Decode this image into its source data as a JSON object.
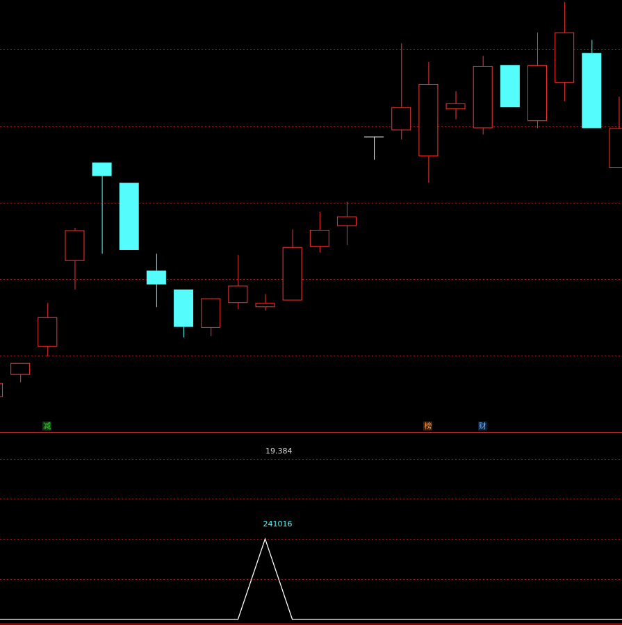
{
  "colors": {
    "background": "#000000",
    "up": "#ff3232",
    "down": "#54fcfc",
    "doji": "#ffffff",
    "grid": "#a01818",
    "separator": "#c83232",
    "indicator_line": "#ffffff",
    "peak_label": "#54fcfc",
    "value_label": "#dcdcdc"
  },
  "chart_data": [
    {
      "type": "candlestick",
      "title": "",
      "xlabel": "",
      "ylabel": "",
      "ylim": [
        0,
        100
      ],
      "grid": true,
      "gridlines": [
        88.3,
        70.0,
        51.8,
        33.6,
        15.4
      ],
      "candles": [
        {
          "open": 5.5,
          "close": 8.8,
          "high": 8.8,
          "low": 5.5
        },
        {
          "open": 10.8,
          "close": 13.6,
          "high": 13.6,
          "low": 9.0
        },
        {
          "open": 17.5,
          "close": 24.5,
          "high": 27.9,
          "low": 15.2
        },
        {
          "open": 37.9,
          "close": 45.2,
          "high": 45.8,
          "low": 31.1
        },
        {
          "open": 61.3,
          "close": 58.1,
          "high": 61.3,
          "low": 39.6
        },
        {
          "open": 56.5,
          "close": 40.5,
          "high": 56.5,
          "low": 40.5
        },
        {
          "open": 35.6,
          "close": 32.3,
          "high": 39.6,
          "low": 26.9
        },
        {
          "open": 31.1,
          "close": 22.2,
          "high": 31.1,
          "low": 19.7
        },
        {
          "open": 22.0,
          "close": 29.0,
          "high": 29.0,
          "low": 20.0
        },
        {
          "open": 27.9,
          "close": 32.0,
          "high": 39.3,
          "low": 26.4
        },
        {
          "open": 26.9,
          "close": 27.9,
          "high": 30.0,
          "low": 26.1
        },
        {
          "open": 28.5,
          "close": 41.2,
          "high": 45.4,
          "low": 28.5
        },
        {
          "open": 41.3,
          "close": 45.3,
          "high": 49.6,
          "low": 39.9
        },
        {
          "open": 46.2,
          "close": 48.5,
          "high": 52.0,
          "low": 41.7
        },
        {
          "open": 67.5,
          "close": 67.5,
          "high": 67.5,
          "low": 62.0
        },
        {
          "open": 69.0,
          "close": 74.5,
          "high": 89.7,
          "low": 66.8
        },
        {
          "open": 62.8,
          "close": 80.0,
          "high": 85.3,
          "low": 56.5
        },
        {
          "open": 74.0,
          "close": 75.4,
          "high": 78.3,
          "low": 71.6
        },
        {
          "open": 69.5,
          "close": 84.3,
          "high": 86.7,
          "low": 68.0
        },
        {
          "open": 84.5,
          "close": 74.5,
          "high": 84.5,
          "low": 74.5
        },
        {
          "open": 71.2,
          "close": 84.5,
          "high": 92.3,
          "low": 69.5
        },
        {
          "open": 80.3,
          "close": 92.3,
          "high": 99.5,
          "low": 75.9
        },
        {
          "open": 87.4,
          "close": 69.5,
          "high": 90.5,
          "low": 69.5
        },
        {
          "open": 60.0,
          "close": 69.5,
          "high": 77.0,
          "low": 60.0
        }
      ],
      "signals": [
        {
          "index": 2,
          "text": "减",
          "color": "#32dc32",
          "bg": "#0a3a0a"
        },
        {
          "index": 16,
          "text": "榜",
          "color": "#ff8c32",
          "bg": "#3a200a"
        },
        {
          "index": 18,
          "text": "财",
          "color": "#64b4ff",
          "bg": "#0a1e3a"
        }
      ]
    },
    {
      "type": "line",
      "title": "",
      "xlabel": "",
      "ylabel": "",
      "ylim": [
        0,
        241016
      ],
      "grid": true,
      "top_value_label": "19.384",
      "peak_label": "241016",
      "peak_index": 10,
      "values": [
        0,
        0,
        0,
        0,
        0,
        0,
        0,
        0,
        0,
        0,
        241016,
        0,
        0,
        0,
        0,
        0,
        0,
        0,
        0,
        0,
        0,
        0,
        0,
        0
      ]
    }
  ]
}
